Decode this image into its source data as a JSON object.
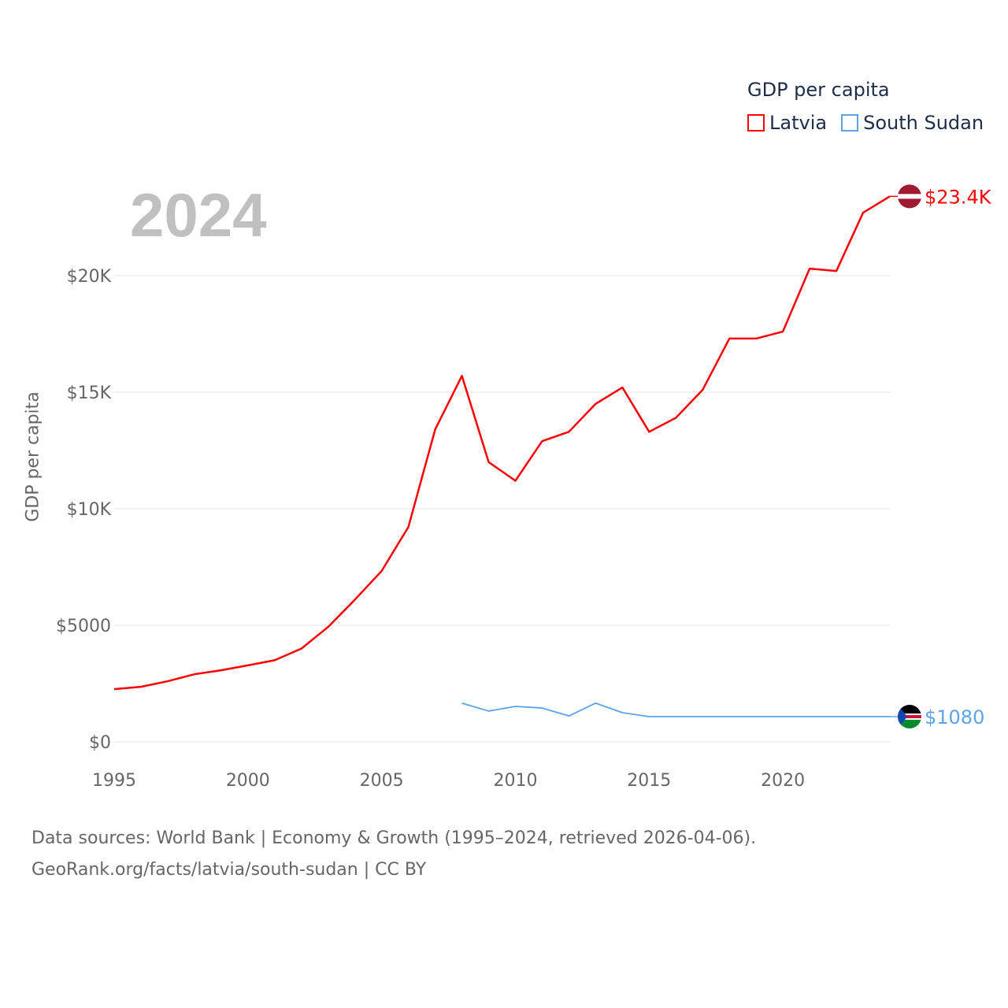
{
  "chart_data": {
    "type": "line",
    "title": "2024",
    "ylabel": "GDP per capita",
    "xlabel": "",
    "legend_title": "GDP per capita",
    "legend_position": "top-right",
    "xlim": [
      1995,
      2024
    ],
    "ylim": [
      0,
      24000
    ],
    "x_ticks": [
      1995,
      2000,
      2005,
      2010,
      2015,
      2020
    ],
    "x_tick_labels": [
      "1995",
      "2000",
      "2005",
      "2010",
      "2015",
      "2020"
    ],
    "y_ticks": [
      0,
      5000,
      10000,
      15000,
      20000
    ],
    "y_tick_labels": [
      "$0",
      "$5000",
      "$10K",
      "$15K",
      "$20K"
    ],
    "grid": true,
    "series": [
      {
        "name": "Latvia",
        "color": "#ff0000",
        "end_label": "$23.4K",
        "x": [
          1995,
          1996,
          1997,
          1998,
          1999,
          2000,
          2001,
          2002,
          2003,
          2004,
          2005,
          2006,
          2007,
          2008,
          2009,
          2010,
          2011,
          2012,
          2013,
          2014,
          2015,
          2016,
          2017,
          2018,
          2019,
          2020,
          2021,
          2022,
          2023,
          2024
        ],
        "values": [
          2260,
          2360,
          2600,
          2900,
          3070,
          3280,
          3500,
          4000,
          4930,
          6100,
          7330,
          9220,
          13400,
          15700,
          12000,
          11200,
          12900,
          13300,
          14500,
          15200,
          13300,
          13900,
          15100,
          17300,
          17300,
          17600,
          20300,
          20200,
          22700,
          23400
        ]
      },
      {
        "name": "South Sudan",
        "color": "#5ba4ea",
        "end_label": "$1080",
        "x": [
          2008,
          2009,
          2010,
          2011,
          2012,
          2013,
          2014,
          2015,
          2016,
          2017,
          2018,
          2019,
          2020,
          2021,
          2022,
          2023,
          2024
        ],
        "values": [
          1660,
          1320,
          1520,
          1450,
          1110,
          1660,
          1250,
          1080,
          1080,
          1080,
          1080,
          1080,
          1080,
          1080,
          1080,
          1080,
          1080
        ]
      }
    ]
  },
  "footer": {
    "line1": "Data sources: World Bank | Economy & Growth (1995–2024, retrieved 2026-04-06).",
    "line2": "GeoRank.org/facts/latvia/south-sudan | CC BY"
  }
}
